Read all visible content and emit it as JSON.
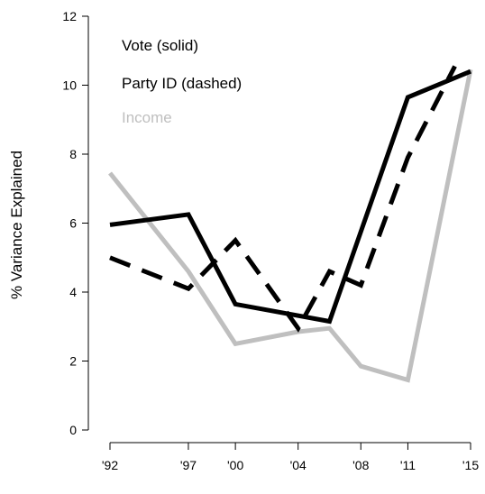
{
  "chart_data": {
    "type": "line",
    "title": "",
    "xlabel": "",
    "ylabel": "% Variance Explained",
    "ylim": [
      0,
      12
    ],
    "yticks": [
      0,
      2,
      4,
      6,
      8,
      10,
      12
    ],
    "x": [
      1992,
      1997,
      2000,
      2004,
      2006,
      2008,
      2011,
      2014,
      2015
    ],
    "xtick_values": [
      1992,
      1997,
      2000,
      2004,
      2008,
      2011,
      2015
    ],
    "xtick_labels": [
      "'92",
      "'97",
      "'00",
      "'04",
      "'08",
      "'11",
      "'15"
    ],
    "legend": {
      "placement": "top-left",
      "entries": [
        {
          "label": "Vote (solid)",
          "color": "#000000"
        },
        {
          "label": "Party ID (dashed)",
          "color": "#000000"
        },
        {
          "label": "Income",
          "color": "#bfbfbf"
        }
      ]
    },
    "series": [
      {
        "key": "vote",
        "color": "#000000",
        "dash": "solid",
        "points": [
          [
            1992,
            5.95
          ],
          [
            1997,
            6.25
          ],
          [
            2000,
            3.65
          ],
          [
            2006,
            3.15
          ],
          [
            2011,
            9.65
          ],
          [
            2015,
            10.4
          ]
        ]
      },
      {
        "key": "party_id",
        "color": "#000000",
        "dash": "dashed",
        "points": [
          [
            1992,
            5.0
          ],
          [
            1997,
            4.1
          ],
          [
            2000,
            5.5
          ],
          [
            2004,
            2.95
          ],
          [
            2006,
            4.6
          ],
          [
            2008,
            4.2
          ],
          [
            2011,
            7.9
          ],
          [
            2014,
            10.55
          ]
        ]
      },
      {
        "key": "income",
        "color": "#bfbfbf",
        "dash": "solid",
        "points": [
          [
            1992,
            7.45
          ],
          [
            1997,
            4.6
          ],
          [
            2000,
            2.5
          ],
          [
            2004,
            2.85
          ],
          [
            2006,
            2.95
          ],
          [
            2008,
            1.85
          ],
          [
            2011,
            1.45
          ],
          [
            2015,
            10.45
          ]
        ]
      }
    ]
  }
}
